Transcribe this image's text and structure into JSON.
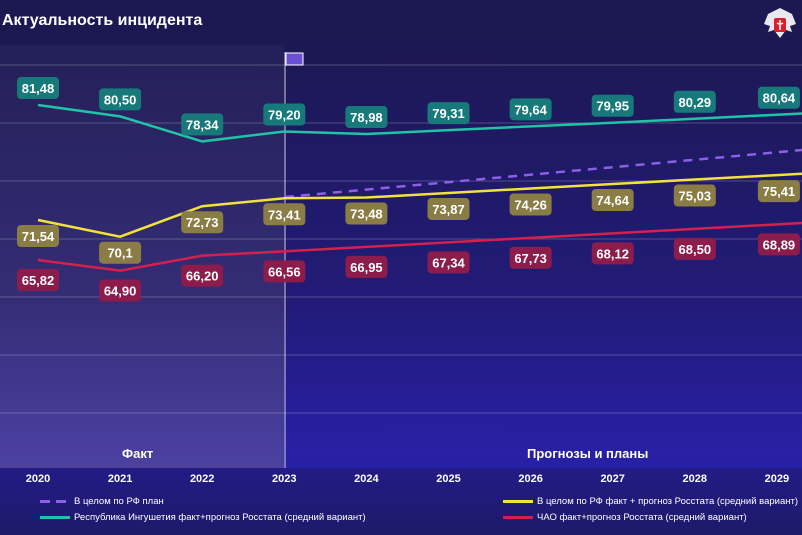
{
  "title": "Актуальность инцидента",
  "sections": {
    "fact": "Факт",
    "forecast": "Прогнозы и планы"
  },
  "colors": {
    "teal": "#1fc4a6",
    "yellow": "#f2e33a",
    "red": "#d4204c",
    "plan": "#8d5ee8",
    "teal_box": "#17797a",
    "yellow_box": "#8a7c45",
    "red_box": "#8c1c4b"
  },
  "chart_data": {
    "type": "line",
    "title": "Актуальность инцидента",
    "x": [
      "2020",
      "2021",
      "2022",
      "2023",
      "2024",
      "2025",
      "2026",
      "2027",
      "2028",
      "2029"
    ],
    "series": [
      {
        "name": "Республика Ингушетия факт+прогноз Росстата (средний вариант)",
        "color": "teal",
        "values": [
          81.48,
          80.5,
          78.34,
          79.2,
          78.98,
          79.31,
          79.64,
          79.95,
          80.29,
          80.64
        ],
        "labels": [
          "81,48",
          "80,50",
          "78,34",
          "79,20",
          "78,98",
          "79,31",
          "79,64",
          "79,95",
          "80,29",
          "80,64"
        ]
      },
      {
        "name": "В целом по РФ факт + прогноз Росстата (средний вариант)",
        "color": "yellow",
        "values": [
          71.54,
          70.1,
          72.73,
          73.41,
          73.48,
          73.87,
          74.26,
          74.64,
          75.03,
          75.41
        ],
        "labels": [
          "71,54",
          "70,1",
          "72,73",
          "73,41",
          "73,48",
          "73,87",
          "74,26",
          "74,64",
          "75,03",
          "75,41"
        ]
      },
      {
        "name": "ЧАО факт+прогноз Росстата (средний вариант)",
        "color": "red",
        "values": [
          65.82,
          64.9,
          66.2,
          66.56,
          66.95,
          67.34,
          67.73,
          68.12,
          68.5,
          68.89
        ],
        "labels": [
          "65,82",
          "64,90",
          "66,20",
          "66,56",
          "66,95",
          "67,34",
          "67,73",
          "68,12",
          "68,50",
          "68,89"
        ]
      },
      {
        "name": "В целом по РФ план",
        "color": "plan",
        "dashed": true
      }
    ],
    "legend": [
      "В целом по РФ план",
      "В целом по РФ факт + прогноз Росстата (средний вариант)",
      "Республика Ингушетия факт+прогноз Росстата (средний вариант)",
      "ЧАО факт+прогноз Росстата (средний вариант)"
    ],
    "legend_position": "bottom",
    "grid": true
  }
}
